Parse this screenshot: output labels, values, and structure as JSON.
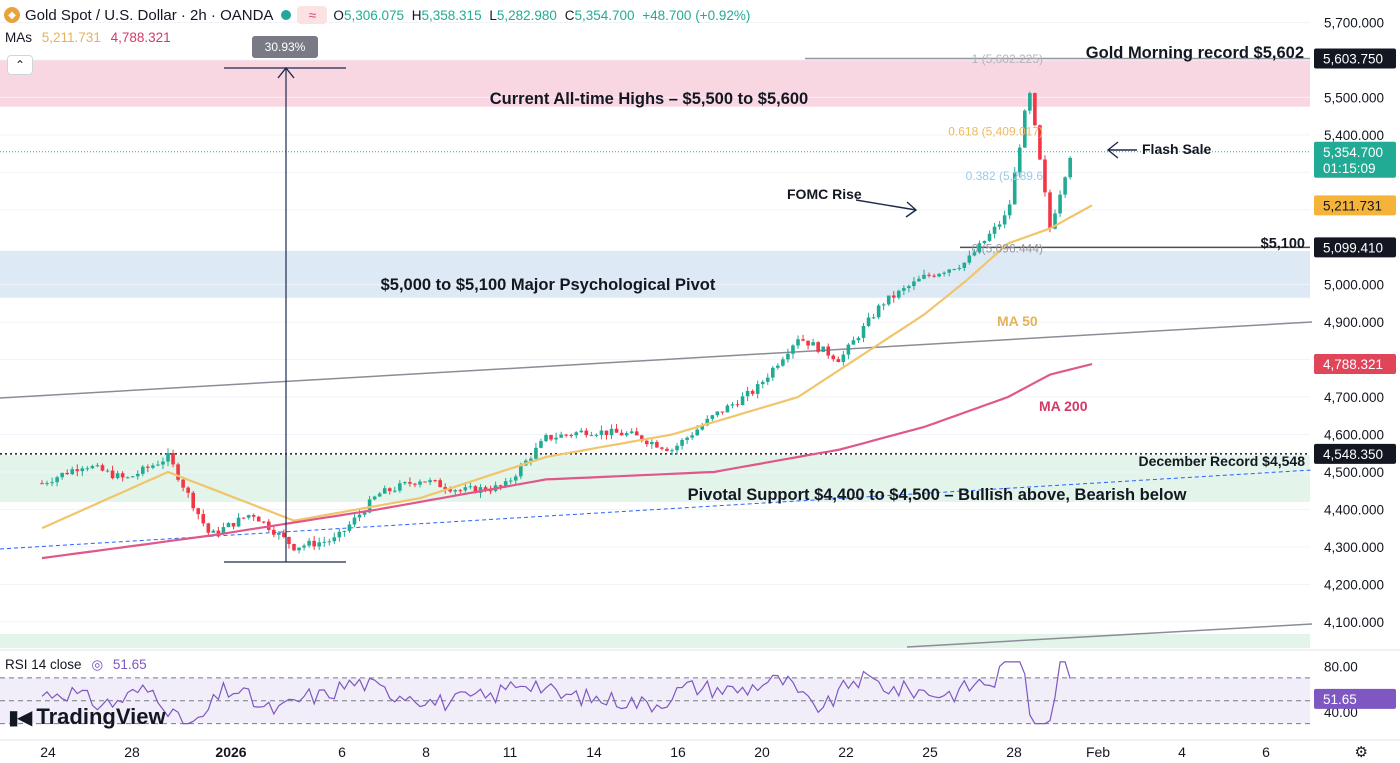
{
  "header": {
    "symbol_title": "Gold Spot / U.S. Dollar · 2h · OANDA",
    "compare_icon": "wave-icon",
    "open_label": "O",
    "open": "5,306.075",
    "high_label": "H",
    "high": "5,358.315",
    "low_label": "L",
    "low": "5,282.980",
    "close_label": "C",
    "close": "5,354.700",
    "change": "+48.700 (+0.92%)",
    "mas_label": "MAs",
    "ma50_value": "5,211.731",
    "ma200_value": "4,788.321"
  },
  "rsi": {
    "label": "RSI 14 close",
    "value": "51.65",
    "axis_ticks": [
      "80.00",
      "40.00"
    ],
    "upper": 70,
    "lower": 30,
    "mid": 50
  },
  "brand": {
    "name": "TradingView"
  },
  "colors": {
    "up": "#22ab94",
    "down": "#f23645",
    "ma50": "#f0c56b",
    "ma200": "#e0588a",
    "rsi": "#7e57c2",
    "ath_zone": "#f8d7e3",
    "pivot_zone": "#dde9f4",
    "support_zone": "#e3f4ea"
  },
  "chart_data": {
    "type": "candlestick",
    "title": "Gold Spot / U.S. Dollar · 2h · OANDA",
    "y_axis": {
      "range": [
        4030,
        5760
      ],
      "ticks": [
        "5,700.000",
        "5,500.000",
        "5,400.000",
        "5,000.000",
        "4,900.000",
        "4,700.000",
        "4,600.000",
        "4,500.000",
        "4,400.000",
        "4,300.000",
        "4,200.000",
        "4,100.000"
      ],
      "tick_values": [
        5700,
        5500,
        5400,
        5000,
        4900,
        4700,
        4600,
        4500,
        4400,
        4300,
        4200,
        4100
      ]
    },
    "x_axis": {
      "labels": [
        "24",
        "28",
        "2026",
        "6",
        "8",
        "11",
        "14",
        "16",
        "20",
        "22",
        "25",
        "28",
        "Feb",
        "4",
        "6"
      ],
      "label_index": [
        0,
        2,
        4.5,
        7,
        9,
        11,
        13,
        15,
        17,
        19,
        21,
        23,
        25,
        27,
        29
      ]
    },
    "price_labels": [
      {
        "text": "5,603.750",
        "value": 5603.75,
        "style": "dark"
      },
      {
        "text": "5,354.700",
        "value": 5354.7,
        "style": "green",
        "countdown": "01:15:09"
      },
      {
        "text": "5,211.731",
        "value": 5211.731,
        "style": "orange"
      },
      {
        "text": "5,099.410",
        "value": 5099.41,
        "style": "dark"
      },
      {
        "text": "4,788.321",
        "value": 4788.321,
        "style": "pink"
      },
      {
        "text": "4,548.350",
        "value": 4548.35,
        "style": "dark"
      }
    ],
    "zones": [
      {
        "label": "Current All-time Highs – $5,500 to $5,600",
        "from": 5475,
        "to": 5600,
        "color": "#f8d7e3"
      },
      {
        "label": "$5,000 to $5,100 Major Psychological Pivot",
        "from": 4965,
        "to": 5090,
        "color": "#dde9f4"
      },
      {
        "label": "Pivotal Support $4,400 to $4,500 – Bullish above, Bearish below",
        "from": 4420,
        "to": 4545,
        "color": "#e3f4ea"
      }
    ],
    "annotations": {
      "gold_morning": "Gold Morning record $5,602",
      "flash_sale": "Flash Sale",
      "fomc_rise": "FOMC Rise",
      "level_5100": "$5,100",
      "december_record": "December Record $4,548",
      "ma50": "MA 50",
      "ma200": "MA 200",
      "measure_pct": "30.93%"
    },
    "fibonacci": [
      {
        "text": "1 (5,602.225)",
        "value": 5602.225,
        "color": "#b2b5be"
      },
      {
        "text": "0.618 (5,409.017)",
        "value": 5409.017,
        "color": "#f0b95a"
      },
      {
        "text": "0.382 (5,289.6",
        "value": 5289.6,
        "color": "#9ec9e6"
      },
      {
        "text": "0 (5,096.444)",
        "value": 5096.444,
        "color": "#9598a1"
      }
    ],
    "series": [
      {
        "name": "Close",
        "x": [
          0,
          1,
          2,
          3,
          4,
          5,
          6,
          7,
          8,
          9,
          10,
          11,
          12,
          13,
          14,
          15,
          16,
          17,
          18,
          19,
          20,
          21,
          22,
          23,
          23.5,
          24,
          24.5
        ],
        "values": [
          4470,
          4520,
          4480,
          4540,
          4330,
          4390,
          4300,
          4320,
          4440,
          4480,
          4450,
          4460,
          4590,
          4610,
          4600,
          4560,
          4650,
          4720,
          4860,
          4800,
          4950,
          5020,
          5060,
          5190,
          5520,
          5150,
          5355
        ]
      },
      {
        "name": "MA 50",
        "x": [
          0,
          3,
          6,
          9,
          12,
          15,
          18,
          21,
          22,
          23,
          24,
          25
        ],
        "values": [
          4350,
          4500,
          4370,
          4430,
          4540,
          4600,
          4700,
          4920,
          5010,
          5110,
          5150,
          5212
        ]
      },
      {
        "name": "MA 200",
        "x": [
          0,
          4,
          8,
          12,
          16,
          19,
          21,
          23,
          24,
          25
        ],
        "values": [
          4270,
          4330,
          4400,
          4480,
          4500,
          4560,
          4620,
          4700,
          4760,
          4788
        ]
      }
    ]
  }
}
